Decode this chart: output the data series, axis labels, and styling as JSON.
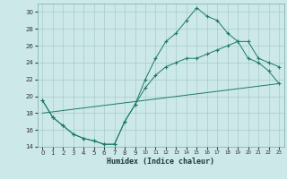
{
  "xlabel": "Humidex (Indice chaleur)",
  "background_color": "#cce8e8",
  "grid_color": "#aacccc",
  "line_color": "#1a7a6a",
  "ylim": [
    14,
    31
  ],
  "xlim": [
    -0.5,
    23.5
  ],
  "yticks": [
    14,
    16,
    18,
    20,
    22,
    24,
    26,
    28,
    30
  ],
  "xticks": [
    0,
    1,
    2,
    3,
    4,
    5,
    6,
    7,
    8,
    9,
    10,
    11,
    12,
    13,
    14,
    15,
    16,
    17,
    18,
    19,
    20,
    21,
    22,
    23
  ],
  "line1_x": [
    0,
    1,
    2,
    3,
    4,
    5,
    6,
    7,
    8,
    9,
    10,
    11,
    12,
    13,
    14,
    15,
    16,
    17,
    18,
    19,
    20,
    21,
    22,
    23
  ],
  "line1_y": [
    19.5,
    17.5,
    16.5,
    15.5,
    15.0,
    14.7,
    14.3,
    14.3,
    17.0,
    19.0,
    22.0,
    24.5,
    26.5,
    27.5,
    29.0,
    30.5,
    29.5,
    29.0,
    27.5,
    26.5,
    26.5,
    24.5,
    24.0,
    23.5
  ],
  "line2_x": [
    0,
    1,
    2,
    3,
    4,
    5,
    6,
    7,
    8,
    9,
    10,
    11,
    12,
    13,
    14,
    15,
    16,
    17,
    18,
    19,
    20,
    21,
    22,
    23
  ],
  "line2_y": [
    19.5,
    17.5,
    16.5,
    15.5,
    15.0,
    14.7,
    14.3,
    14.3,
    17.0,
    19.0,
    21.0,
    22.5,
    23.5,
    24.0,
    24.5,
    24.5,
    25.0,
    25.5,
    26.0,
    26.5,
    24.5,
    24.0,
    23.0,
    21.5
  ],
  "line3_x": [
    0,
    23
  ],
  "line3_y": [
    18.0,
    21.5
  ]
}
